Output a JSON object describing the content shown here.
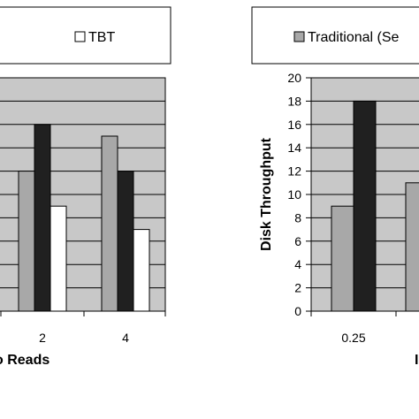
{
  "chart_data": [
    {
      "type": "bar",
      "legend": {
        "items": [
          {
            "name": "TBT",
            "color": "#ffffff"
          }
        ],
        "placement": "top"
      },
      "categories": [
        "",
        "2",
        "4"
      ],
      "series": [
        {
          "name": "",
          "color": "#a8a8a8",
          "values": [
            null,
            12,
            15
          ]
        },
        {
          "name": "",
          "color": "#202020",
          "values": [
            null,
            16,
            12
          ]
        },
        {
          "name": "TBT",
          "color": "#ffffff",
          "values": [
            null,
            9,
            7
          ]
        }
      ],
      "xlabel": "o Reads",
      "ylabel": "",
      "ylim": [
        0,
        20
      ],
      "grid": true,
      "plot_bg": "#c8c8c8"
    },
    {
      "type": "bar",
      "legend": {
        "items": [
          {
            "name": "Traditional (Se",
            "color": "#a8a8a8"
          }
        ],
        "placement": "top"
      },
      "categories": [
        "0.25",
        ""
      ],
      "series": [
        {
          "name": "Traditional (Se",
          "color": "#a8a8a8",
          "values": [
            9,
            11
          ]
        },
        {
          "name": "",
          "color": "#202020",
          "values": [
            18,
            null
          ]
        }
      ],
      "xlabel": "I",
      "ylabel": "Disk Throughput",
      "ylim": [
        0,
        20
      ],
      "yticks": [
        0,
        2,
        4,
        6,
        8,
        10,
        12,
        14,
        16,
        18,
        20
      ],
      "grid": true,
      "plot_bg": "#c8c8c8"
    }
  ]
}
